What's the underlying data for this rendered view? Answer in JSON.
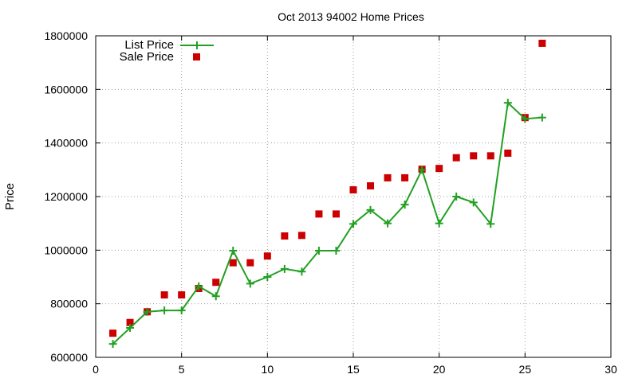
{
  "chart_data": {
    "type": "scatter",
    "title": "Oct 2013 94002 Home Prices",
    "xlabel": "",
    "ylabel": "Price",
    "xlim": [
      0,
      30
    ],
    "ylim": [
      600000,
      1800000
    ],
    "x_ticks": [
      0,
      5,
      10,
      15,
      20,
      25,
      30
    ],
    "y_ticks": [
      600000,
      800000,
      1000000,
      1200000,
      1400000,
      1600000,
      1800000
    ],
    "grid": true,
    "legend_position": "top-left",
    "series": [
      {
        "name": "List Price",
        "style": "line+plus",
        "color": "#22a022",
        "x": [
          1,
          2,
          3,
          4,
          5,
          6,
          7,
          8,
          9,
          10,
          11,
          12,
          13,
          14,
          15,
          16,
          17,
          18,
          19,
          20,
          21,
          22,
          23,
          24,
          25,
          26
        ],
        "values": [
          650000,
          710000,
          770000,
          775000,
          775000,
          865000,
          828000,
          998000,
          875000,
          900000,
          930000,
          920000,
          998000,
          998000,
          1098000,
          1150000,
          1100000,
          1170000,
          1300000,
          1100000,
          1200000,
          1178000,
          1098000,
          1550000,
          1490000,
          1495000
        ]
      },
      {
        "name": "Sale Price",
        "style": "square",
        "color": "#cc0000",
        "x": [
          1,
          2,
          3,
          4,
          5,
          6,
          7,
          8,
          9,
          10,
          11,
          12,
          13,
          14,
          15,
          16,
          17,
          18,
          19,
          20,
          21,
          22,
          23,
          24,
          25,
          26
        ],
        "values": [
          690000,
          730000,
          770000,
          833000,
          833000,
          857000,
          880000,
          953000,
          953000,
          978000,
          1053000,
          1055000,
          1135000,
          1135000,
          1225000,
          1240000,
          1270000,
          1270000,
          1302000,
          1305000,
          1345000,
          1352000,
          1352000,
          1362000,
          1495000,
          1772000
        ]
      }
    ]
  }
}
